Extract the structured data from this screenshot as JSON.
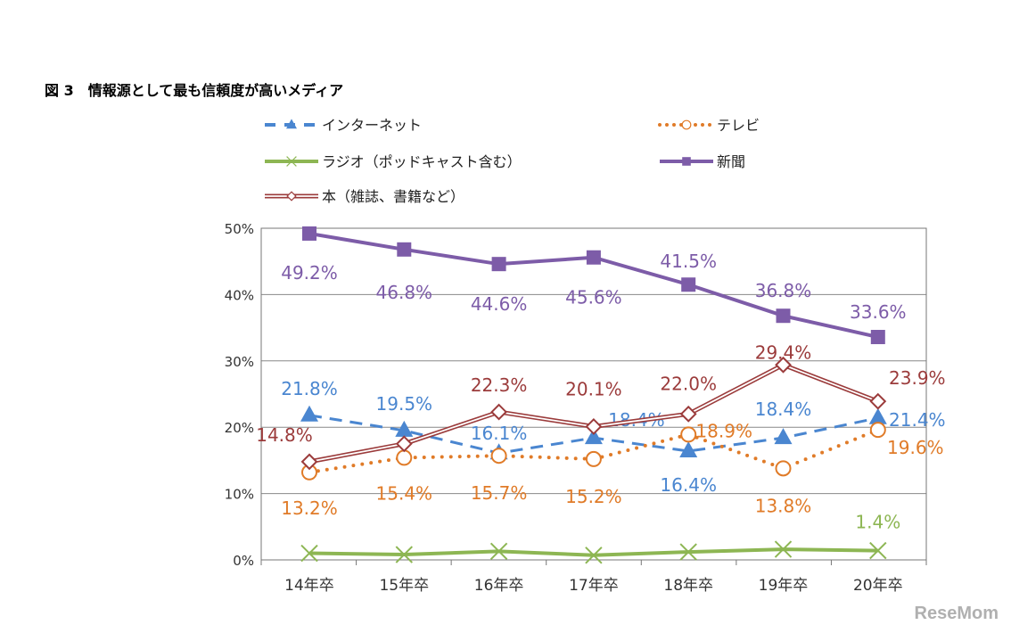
{
  "chart_data": {
    "type": "line",
    "title": "図 3　情報源として最も信頼度が高いメディア",
    "categories": [
      "14年卒",
      "15年卒",
      "16年卒",
      "17年卒",
      "18年卒",
      "19年卒",
      "20年卒"
    ],
    "ylim": [
      0,
      50
    ],
    "yticks": [
      "0%",
      "10%",
      "20%",
      "30%",
      "40%",
      "50%"
    ],
    "grid": true,
    "legend_position": "top",
    "series": [
      {
        "name": "インターネット",
        "color": "#4a86d0",
        "style": "dashed",
        "marker": "triangle",
        "values": [
          21.8,
          19.5,
          16.1,
          18.4,
          16.4,
          18.4,
          21.4
        ],
        "labels": [
          "21.8%",
          "19.5%",
          "16.1%",
          "18.4%",
          "16.4%",
          "18.4%",
          "21.4%"
        ]
      },
      {
        "name": "テレビ",
        "color": "#e07b28",
        "style": "dotted",
        "marker": "circle",
        "values": [
          13.2,
          15.4,
          15.7,
          15.2,
          18.9,
          13.8,
          19.6
        ],
        "labels": [
          "13.2%",
          "15.4%",
          "15.7%",
          "15.2%",
          "18.9%",
          "13.8%",
          "19.6%"
        ]
      },
      {
        "name": "ラジオ（ポッドキャスト含む）",
        "color": "#8db653",
        "style": "solid",
        "marker": "x",
        "values": [
          1.0,
          0.8,
          1.3,
          0.7,
          1.2,
          1.6,
          1.4
        ],
        "labels": [
          "",
          "",
          "",
          "",
          "",
          "",
          "1.4%"
        ]
      },
      {
        "name": "新聞",
        "color": "#7d5ca8",
        "style": "solid",
        "marker": "square",
        "values": [
          49.2,
          46.8,
          44.6,
          45.6,
          41.5,
          36.8,
          33.6
        ],
        "labels": [
          "49.2%",
          "46.8%",
          "44.6%",
          "45.6%",
          "41.5%",
          "36.8%",
          "33.6%"
        ]
      },
      {
        "name": "本（雑誌、書籍など）",
        "color": "#9b3b3b",
        "style": "double",
        "marker": "diamond",
        "values": [
          14.8,
          17.5,
          22.3,
          20.1,
          22.0,
          29.4,
          23.9
        ],
        "labels": [
          "14.8%",
          "",
          "22.3%",
          "20.1%",
          "22.0%",
          "29.4%",
          "23.9%"
        ]
      }
    ]
  },
  "watermark": "ReseMom"
}
